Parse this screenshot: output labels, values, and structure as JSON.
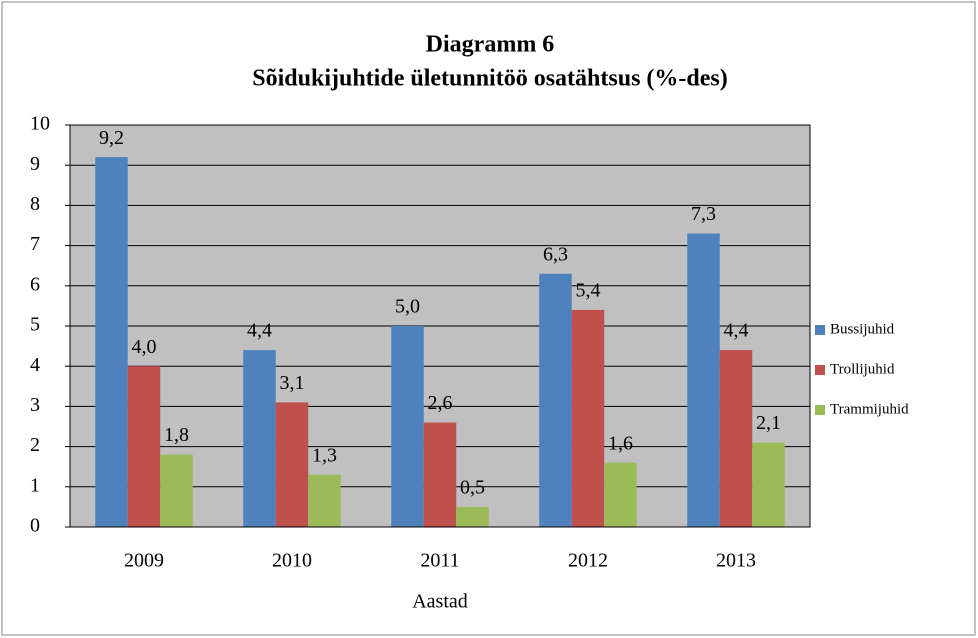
{
  "chart_data": {
    "type": "bar",
    "title": "Diagramm 6",
    "subtitle": "Sõidukijuhtide ületunnitöö osatähtsus (%-des)",
    "x_label": "Aastad",
    "categories": [
      "2009",
      "2010",
      "2011",
      "2012",
      "2013"
    ],
    "series": [
      {
        "name": "Bussijuhid",
        "color": "#4f81bd",
        "values": [
          9.2,
          4.4,
          5.0,
          6.3,
          7.3
        ],
        "value_labels": [
          "9,2",
          "4,4",
          "5,0",
          "6,3",
          "7,3"
        ]
      },
      {
        "name": "Trollijuhid",
        "color": "#c0504d",
        "values": [
          4.0,
          3.1,
          2.6,
          5.4,
          4.4
        ],
        "value_labels": [
          "4,0",
          "3,1",
          "2,6",
          "5,4",
          "4,4"
        ]
      },
      {
        "name": "Trammijuhid",
        "color": "#9bbb59",
        "values": [
          1.8,
          1.3,
          0.5,
          1.6,
          2.1
        ],
        "value_labels": [
          "1,8",
          "1,3",
          "0,5",
          "1,6",
          "2,1"
        ]
      }
    ],
    "ylim": [
      0,
      10
    ],
    "yticks": [
      0,
      1,
      2,
      3,
      4,
      5,
      6,
      7,
      8,
      9,
      10
    ],
    "grid": true,
    "legend": "right"
  }
}
